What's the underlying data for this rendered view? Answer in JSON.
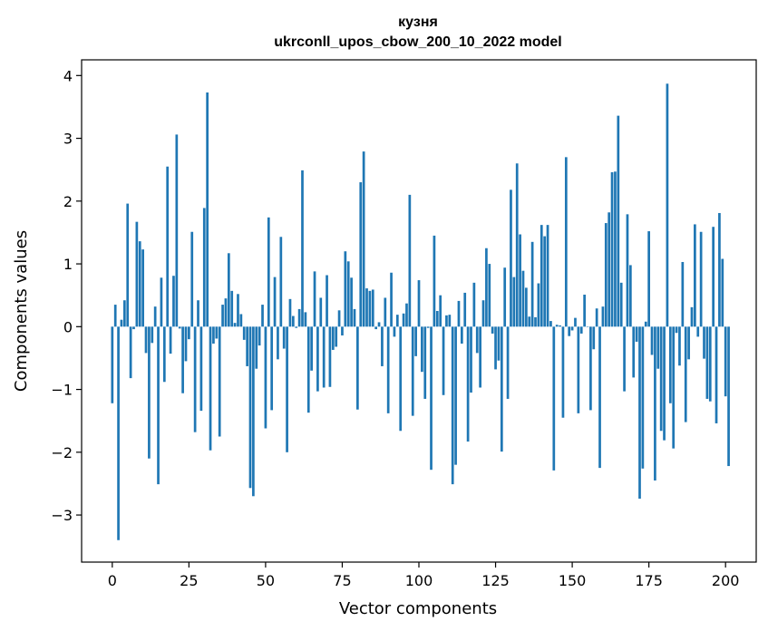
{
  "chart_data": {
    "type": "bar",
    "title_line1": "кузня",
    "title_line2": "ukrconll_upos_cbow_200_10_2022 model",
    "xlabel": "Vector components",
    "ylabel": "Components values",
    "xlim": [
      -10,
      210
    ],
    "ylim": [
      -3.75,
      4.25
    ],
    "xticks": [
      0,
      25,
      50,
      75,
      100,
      125,
      150,
      175,
      200
    ],
    "yticks": [
      -3,
      -2,
      -1,
      0,
      1,
      2,
      3,
      4
    ],
    "grid": false,
    "bar_color": "#1f77b4",
    "values": [
      -1.22,
      0.35,
      -3.4,
      0.11,
      0.42,
      1.96,
      -0.82,
      -0.04,
      1.67,
      1.36,
      1.23,
      -0.42,
      -2.1,
      -0.26,
      0.32,
      -2.51,
      0.78,
      -0.88,
      2.55,
      -0.43,
      0.81,
      3.06,
      -0.03,
      -1.06,
      -0.55,
      -0.2,
      1.51,
      -1.68,
      0.42,
      -1.34,
      1.89,
      3.73,
      -1.97,
      -0.27,
      -0.19,
      -1.75,
      0.35,
      0.45,
      1.17,
      0.57,
      0.06,
      0.52,
      0.2,
      -0.21,
      -0.63,
      -2.57,
      -2.7,
      -0.67,
      -0.3,
      0.35,
      -1.62,
      1.74,
      -1.33,
      0.79,
      -0.52,
      1.43,
      -0.35,
      -2.0,
      0.44,
      0.17,
      -0.02,
      0.28,
      2.49,
      0.23,
      -1.37,
      -0.7,
      0.88,
      -1.03,
      0.46,
      -0.97,
      0.82,
      -0.96,
      -0.37,
      -0.32,
      0.26,
      -0.14,
      1.2,
      1.04,
      0.78,
      0.28,
      -1.32,
      2.3,
      2.79,
      0.61,
      0.57,
      0.59,
      -0.04,
      0.07,
      -0.63,
      0.46,
      -1.38,
      0.86,
      -0.16,
      0.19,
      -1.66,
      0.21,
      0.37,
      2.1,
      -1.42,
      -0.47,
      0.74,
      -0.72,
      -1.15,
      -0.02,
      -2.28,
      1.45,
      0.25,
      0.5,
      -1.09,
      0.18,
      0.19,
      -2.51,
      -2.2,
      0.41,
      -0.27,
      0.54,
      -1.83,
      -1.05,
      0.7,
      -0.42,
      -0.97,
      0.42,
      1.25,
      1.0,
      -0.11,
      -0.68,
      -0.54,
      -1.99,
      0.94,
      -1.15,
      2.18,
      0.79,
      2.6,
      1.47,
      0.89,
      0.62,
      0.16,
      1.35,
      0.15,
      0.69,
      1.62,
      1.44,
      1.62,
      0.09,
      -2.29,
      0.03,
      0.02,
      -1.45,
      2.7,
      -0.15,
      -0.06,
      0.14,
      -1.38,
      -0.11,
      0.51,
      0.0,
      -1.33,
      -0.36,
      0.29,
      -2.25,
      0.32,
      1.65,
      1.82,
      2.46,
      2.47,
      3.36,
      0.7,
      -1.03,
      1.79,
      0.98,
      -0.81,
      -0.24,
      -2.74,
      -2.26,
      0.08,
      1.52,
      -0.45,
      -2.45,
      -0.67,
      -1.66,
      -1.81,
      3.87,
      -1.22,
      -1.94,
      -0.1,
      -0.62,
      1.03,
      -1.52,
      -0.52,
      0.31,
      1.63,
      -0.16,
      1.51,
      -0.51,
      -1.15,
      -1.19,
      1.59,
      -1.54,
      1.81,
      1.08,
      -1.11,
      -2.22
    ]
  }
}
